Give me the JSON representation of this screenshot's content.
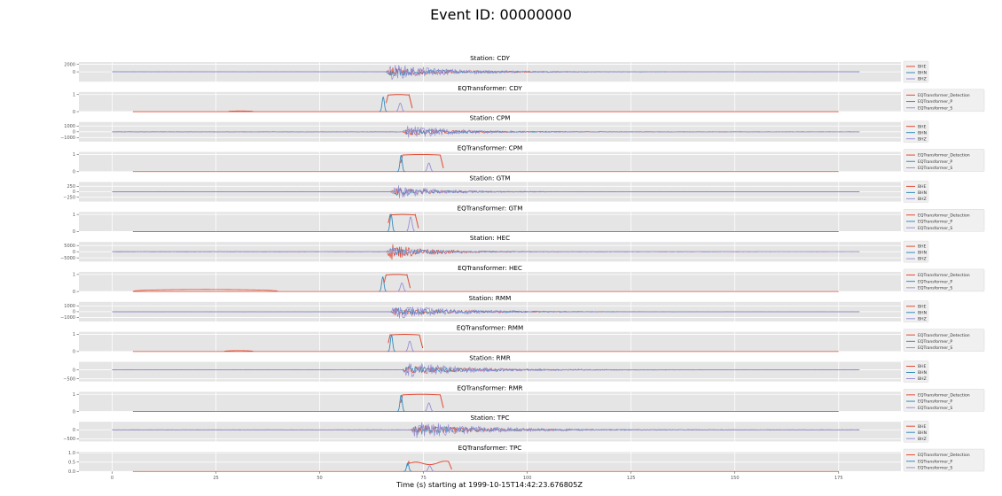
{
  "figure": {
    "title": "Event ID: 00000000",
    "xlabel": "Time (s) starting at 1999-10-15T14:42:23.676805Z"
  },
  "colors": {
    "BHE": "#e24a33",
    "BHN": "#348abd",
    "BHZ": "#988ed5",
    "EQTransformer_Detection": "#e24a33",
    "EQTransformer_P": "#348abd",
    "EQTransformer_S": "#988ed5"
  },
  "chart_data": {
    "type": "line",
    "xlim": [
      -8,
      190
    ],
    "xticks": [
      0,
      25,
      50,
      75,
      100,
      125,
      150,
      175
    ],
    "grid": true,
    "legend_placement": "right",
    "waveform_legend": [
      "BHE",
      "BHN",
      "BHZ"
    ],
    "prob_legend": [
      "EQTransformer_Detection",
      "EQTransformer_P",
      "EQTransformer_S"
    ],
    "panels": [
      {
        "kind": "wave",
        "title": "Station: CDY",
        "yticks": [
          0,
          2000
        ],
        "ylim": [
          -2600,
          2600
        ],
        "x_range": [
          0,
          180
        ],
        "onset": 66,
        "amp": 0.9,
        "decay": 14,
        "dominant": "BHZ"
      },
      {
        "kind": "prob",
        "title": "EQTransformer: CDY",
        "yticks": [
          0,
          1
        ],
        "ylim": [
          0,
          1.15
        ],
        "x_range": [
          5,
          175
        ],
        "det_on": 66.5,
        "det_off": 71.5,
        "p_pick": 65.3,
        "p_peak": 0.85,
        "s_pick": 69.4,
        "s_peak": 0.5,
        "small_bumps": [
          [
            28,
            34,
            0.04
          ]
        ]
      },
      {
        "kind": "wave",
        "title": "Station: CPM",
        "yticks": [
          -1000,
          0,
          1000
        ],
        "ylim": [
          -1700,
          1700
        ],
        "x_range": [
          0,
          180
        ],
        "onset": 70,
        "amp": 0.75,
        "decay": 12,
        "dominant": "BHZ"
      },
      {
        "kind": "prob",
        "title": "EQTransformer: CPM",
        "yticks": [
          0,
          1
        ],
        "ylim": [
          0,
          1.15
        ],
        "x_range": [
          5,
          175
        ],
        "det_on": 70,
        "det_off": 79,
        "p_pick": 69.6,
        "p_peak": 0.95,
        "s_pick": 76.3,
        "s_peak": 0.5,
        "small_bumps": []
      },
      {
        "kind": "wave",
        "title": "Station: GTM",
        "yticks": [
          -250,
          0,
          250
        ],
        "ylim": [
          -450,
          450
        ],
        "x_range": [
          0,
          180
        ],
        "onset": 67,
        "amp": 0.8,
        "decay": 10,
        "dominant": "BHZ"
      },
      {
        "kind": "prob",
        "title": "EQTransformer: GTM",
        "yticks": [
          0,
          1
        ],
        "ylim": [
          0,
          1.15
        ],
        "x_range": [
          5,
          175
        ],
        "det_on": 67,
        "det_off": 73,
        "p_pick": 67.2,
        "p_peak": 1.0,
        "s_pick": 71.9,
        "s_peak": 0.85,
        "small_bumps": []
      },
      {
        "kind": "wave",
        "title": "Station: HEC",
        "yticks": [
          -5000,
          0,
          5000
        ],
        "ylim": [
          -8000,
          8000
        ],
        "x_range": [
          0,
          180
        ],
        "onset": 66,
        "amp": 0.95,
        "decay": 9,
        "dominant": "BHE"
      },
      {
        "kind": "prob",
        "title": "EQTransformer: HEC",
        "yticks": [
          0,
          1
        ],
        "ylim": [
          0,
          1.15
        ],
        "x_range": [
          5,
          175
        ],
        "det_on": 66,
        "det_off": 71,
        "p_pick": 65.2,
        "p_peak": 0.85,
        "s_pick": 69.8,
        "s_peak": 0.5,
        "small_bumps": [
          [
            5,
            40,
            0.12
          ]
        ]
      },
      {
        "kind": "wave",
        "title": "Station: RMM",
        "yticks": [
          -1000,
          0,
          1000
        ],
        "ylim": [
          -1700,
          1700
        ],
        "x_range": [
          0,
          180
        ],
        "onset": 67,
        "amp": 0.8,
        "decay": 14,
        "dominant": "BHZ"
      },
      {
        "kind": "prob",
        "title": "EQTransformer: RMM",
        "yticks": [
          0,
          1
        ],
        "ylim": [
          0,
          1.15
        ],
        "x_range": [
          5,
          175
        ],
        "det_on": 67,
        "det_off": 74,
        "p_pick": 67.3,
        "p_peak": 0.95,
        "s_pick": 71.7,
        "s_peak": 0.6,
        "small_bumps": [
          [
            27,
            34,
            0.05
          ]
        ]
      },
      {
        "kind": "wave",
        "title": "Station: RMR",
        "yticks": [
          -500,
          0
        ],
        "ylim": [
          -650,
          450
        ],
        "x_range": [
          0,
          180
        ],
        "onset": 70,
        "amp": 0.75,
        "decay": 14,
        "dominant": "BHZ"
      },
      {
        "kind": "prob",
        "title": "EQTransformer: RMR",
        "yticks": [
          0,
          1
        ],
        "ylim": [
          0,
          1.15
        ],
        "x_range": [
          5,
          175
        ],
        "det_on": 70,
        "det_off": 79,
        "p_pick": 69.6,
        "p_peak": 0.95,
        "s_pick": 76.3,
        "s_peak": 0.5,
        "small_bumps": []
      },
      {
        "kind": "wave",
        "title": "Station: TPC",
        "yticks": [
          -500,
          0
        ],
        "ylim": [
          -650,
          450
        ],
        "x_range": [
          0,
          180
        ],
        "onset": 72,
        "amp": 0.85,
        "decay": 16,
        "dominant": "BHZ"
      },
      {
        "kind": "prob",
        "title": "EQTransformer: TPC",
        "yticks": [
          0,
          0.5,
          1.0
        ],
        "yticklabels": [
          "0.0",
          "0.5",
          "1.0"
        ],
        "ylim": [
          0,
          1.05
        ],
        "x_range": [
          5,
          175
        ],
        "det_on": 71.5,
        "det_off": 81,
        "p_pick": 71.2,
        "p_peak": 0.45,
        "s_pick": 76.5,
        "s_peak": 0.3,
        "small_bumps": [],
        "det_peak": 0.55,
        "det_wavy": true
      }
    ]
  }
}
